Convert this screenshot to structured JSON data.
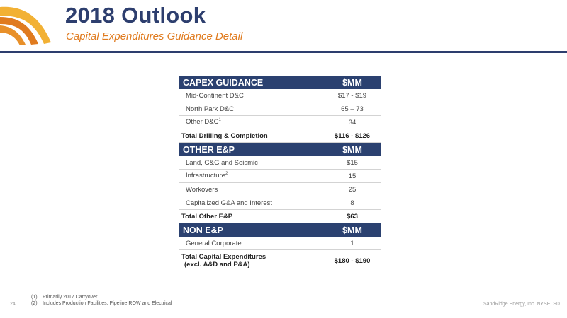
{
  "header": {
    "title": "2018 Outlook",
    "subtitle": "Capital Expenditures Guidance Detail"
  },
  "colors": {
    "navy": "#2d3e6e",
    "header_bar": "#2b4170",
    "orange": "#e07b1f",
    "gold": "#f2b134"
  },
  "table": {
    "capex_header": {
      "label": "CAPEX GUIDANCE",
      "unit": "$MM"
    },
    "capex_rows": [
      {
        "label": "Mid-Continent D&C",
        "value": "$17 - $19"
      },
      {
        "label": "North Park D&C",
        "value": "65 – 73"
      },
      {
        "label": "Other D&C",
        "sup": "1",
        "value": "34"
      }
    ],
    "capex_total": {
      "label": "Total Drilling & Completion",
      "value": "$116 - $126"
    },
    "other_header": {
      "label": "OTHER E&P",
      "unit": "$MM"
    },
    "other_rows": [
      {
        "label": "Land, G&G and Seismic",
        "value": "$15"
      },
      {
        "label": "Infrastructure",
        "sup": "2",
        "value": "15"
      },
      {
        "label": "Workovers",
        "value": "25"
      },
      {
        "label": "Capitalized G&A and Interest",
        "value": "8"
      }
    ],
    "other_total": {
      "label": "Total Other E&P",
      "value": "$63"
    },
    "non_header": {
      "label": "NON E&P",
      "unit": "$MM"
    },
    "non_rows": [
      {
        "label": "General Corporate",
        "value": "1"
      }
    ],
    "grand_total": {
      "label_line1": "Total Capital Expenditures",
      "label_line2": "(excl. A&D and P&A)",
      "value": "$180 - $190"
    }
  },
  "footnotes": [
    {
      "num": "(1)",
      "text": "Primarily 2017 Carryover"
    },
    {
      "num": "(2)",
      "text": "Includes Production Facilities, Pipeline ROW and Electrical"
    }
  ],
  "footer": {
    "page_number": "24",
    "company": "SandRidge Energy, Inc. NYSE: SD"
  }
}
